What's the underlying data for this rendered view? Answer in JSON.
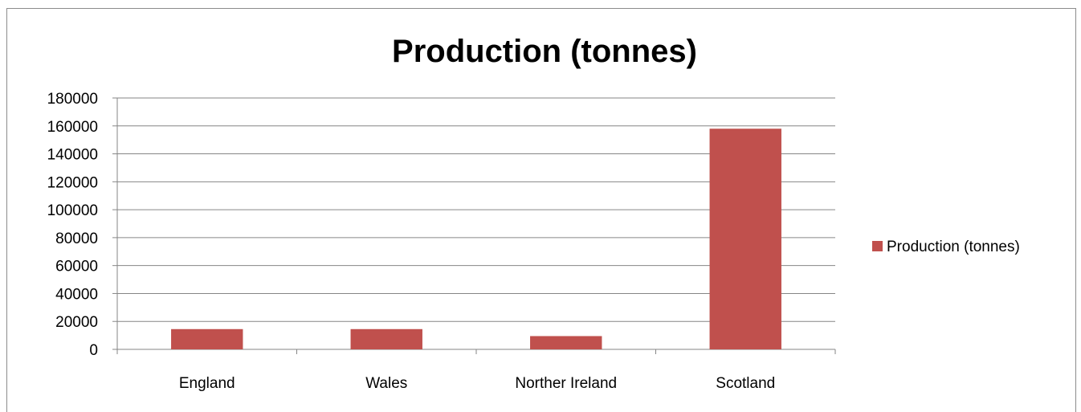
{
  "chart_data": {
    "type": "bar",
    "title": "Production (tonnes)",
    "categories": [
      "England",
      "Wales",
      "Norther Ireland",
      "Scotland"
    ],
    "series": [
      {
        "name": "Production (tonnes)",
        "values": [
          14500,
          14500,
          9500,
          158000
        ],
        "color": "#c0504d"
      }
    ],
    "ylim": [
      0,
      180000
    ],
    "yticks": [
      0,
      20000,
      40000,
      60000,
      80000,
      100000,
      120000,
      140000,
      160000,
      180000
    ],
    "grid": true,
    "legend": "right",
    "xlabel": "",
    "ylabel": ""
  }
}
